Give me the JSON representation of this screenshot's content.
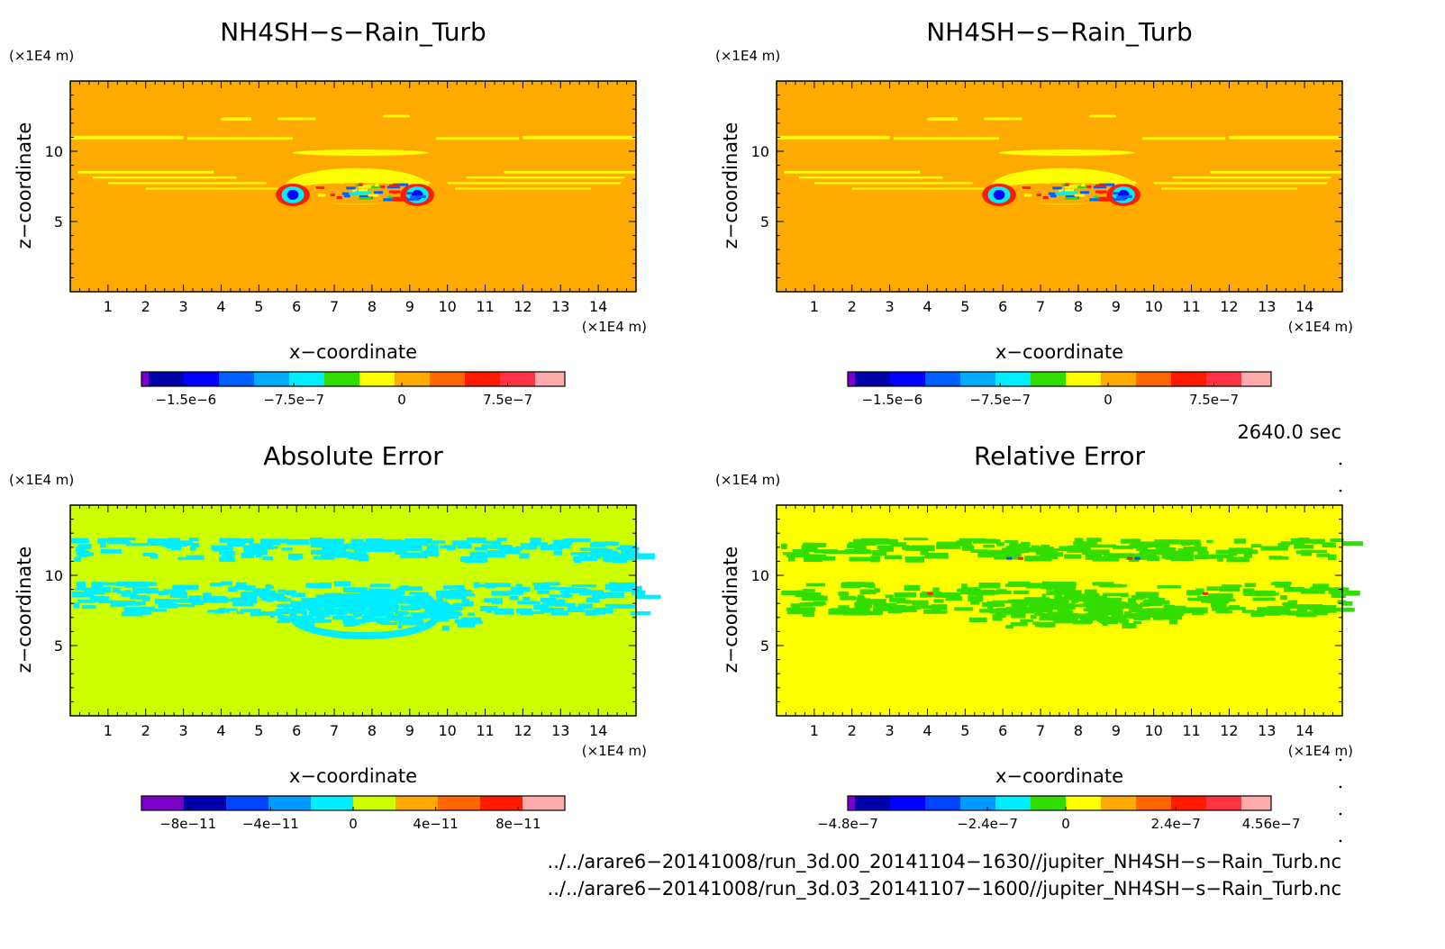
{
  "chart_data": [
    {
      "type": "heatmap",
      "title": "NH4SH−s−Rain_Turb",
      "xlabel": "x−coordinate",
      "ylabel": "z−coordinate",
      "x_unit": "(×1E4 m)",
      "y_unit": "(×1E4 m)",
      "xticks": [
        "1",
        "2",
        "3",
        "4",
        "5",
        "6",
        "7",
        "8",
        "9",
        "10",
        "11",
        "12",
        "13",
        "14"
      ],
      "yticks": [
        "5",
        "10"
      ],
      "xlim": [
        0,
        15
      ],
      "ylim": [
        0,
        15
      ],
      "colorbar": {
        "colors": [
          "#7b00c8",
          "#0000aa",
          "#0000ff",
          "#0060ff",
          "#00aaff",
          "#00eeff",
          "#33dd00",
          "#ffff00",
          "#ffaa00",
          "#ff6600",
          "#ff1a00",
          "#ff3344",
          "#ffaaaa"
        ],
        "tick_labels": [
          "−1.5e−6",
          "−7.5e−7",
          "0",
          "7.5e−7"
        ]
      }
    },
    {
      "type": "heatmap",
      "title": "NH4SH−s−Rain_Turb",
      "xlabel": "x−coordinate",
      "ylabel": "z−coordinate",
      "x_unit": "(×1E4 m)",
      "y_unit": "(×1E4 m)",
      "xticks": [
        "1",
        "2",
        "3",
        "4",
        "5",
        "6",
        "7",
        "8",
        "9",
        "10",
        "11",
        "12",
        "13",
        "14"
      ],
      "yticks": [
        "5",
        "10"
      ],
      "xlim": [
        0,
        15
      ],
      "ylim": [
        0,
        15
      ],
      "colorbar": {
        "colors": [
          "#7b00c8",
          "#0000aa",
          "#0000ff",
          "#0060ff",
          "#00aaff",
          "#00eeff",
          "#33dd00",
          "#ffff00",
          "#ffaa00",
          "#ff6600",
          "#ff1a00",
          "#ff3344",
          "#ffaaaa"
        ],
        "tick_labels": [
          "−1.5e−6",
          "−7.5e−7",
          "0",
          "7.5e−7"
        ]
      }
    },
    {
      "type": "heatmap",
      "title": "Absolute Error",
      "xlabel": "x−coordinate",
      "ylabel": "z−coordinate",
      "x_unit": "(×1E4 m)",
      "y_unit": "(×1E4 m)",
      "xticks": [
        "1",
        "2",
        "3",
        "4",
        "5",
        "6",
        "7",
        "8",
        "9",
        "10",
        "11",
        "12",
        "13",
        "14"
      ],
      "yticks": [
        "5",
        "10"
      ],
      "xlim": [
        0,
        15
      ],
      "ylim": [
        0,
        15
      ],
      "colorbar": {
        "colors": [
          "#7b00c8",
          "#0000aa",
          "#0044ff",
          "#0099ff",
          "#00eeff",
          "#ccff00",
          "#ffaa00",
          "#ff6600",
          "#ff1a00",
          "#ffaaaa"
        ],
        "tick_labels": [
          "−8e−11",
          "−4e−11",
          "0",
          "4e−11",
          "8e−11"
        ]
      }
    },
    {
      "type": "heatmap",
      "title": "Relative Error",
      "xlabel": "x−coordinate",
      "ylabel": "z−coordinate",
      "x_unit": "(×1E4 m)",
      "y_unit": "(×1E4 m)",
      "xticks": [
        "1",
        "2",
        "3",
        "4",
        "5",
        "6",
        "7",
        "8",
        "9",
        "10",
        "11",
        "12",
        "13",
        "14"
      ],
      "yticks": [
        "5",
        "10"
      ],
      "xlim": [
        0,
        15
      ],
      "ylim": [
        0,
        15
      ],
      "colorbar": {
        "colors": [
          "#7b00c8",
          "#0000aa",
          "#0000ff",
          "#0044ff",
          "#0099ff",
          "#00eeff",
          "#33dd00",
          "#ffff00",
          "#ffaa00",
          "#ff6600",
          "#ff1a00",
          "#ff3344",
          "#ffaaaa"
        ],
        "tick_labels": [
          "−4.8e−7",
          "−2.4e−7",
          "0",
          "2.4e−7",
          "4.56e−7"
        ]
      }
    }
  ],
  "time_label": "2640.0 sec",
  "file_paths": [
    "../../arare6−20141008/run_3d.00_20141104−1630//jupiter_NH4SH−s−Rain_Turb.nc",
    "../../arare6−20141008/run_3d.03_20141107−1600//jupiter_NH4SH−s−Rain_Turb.nc"
  ],
  "colors": {
    "field_background": "#ffaa00",
    "field_band": "#ffff00",
    "abs_background": "#ccff00",
    "abs_pattern": "#00eeff",
    "rel_background": "#ffff00",
    "rel_pattern": "#33dd00"
  }
}
